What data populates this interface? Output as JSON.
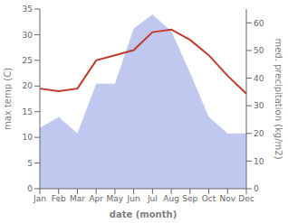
{
  "chart_data": {
    "type": "line",
    "xlabel": "date (month)",
    "ylabel": "max temp (C)",
    "y2label": "med. precipitation (kg/m2)",
    "categories": [
      "Jan",
      "Feb",
      "Mar",
      "Apr",
      "May",
      "Jun",
      "Jul",
      "Aug",
      "Sep",
      "Oct",
      "Nov",
      "Dec"
    ],
    "series": [
      {
        "type": "area",
        "axis": "y2",
        "color": "#c0c8f0",
        "values": [
          22,
          26,
          20,
          38,
          38,
          58,
          63,
          57,
          42,
          26,
          20,
          20
        ]
      },
      {
        "type": "line",
        "color": "#c0392b",
        "values": [
          19.5,
          19.0,
          19.5,
          25.0,
          26.0,
          27.0,
          30.5,
          31.0,
          29.0,
          26.0,
          22.0,
          18.5
        ]
      }
    ],
    "ylim": [
      0,
      35
    ],
    "yticks": [
      0,
      5,
      10,
      15,
      20,
      25,
      30,
      35
    ],
    "y2lim": [
      0,
      65
    ],
    "y2ticks": [
      0,
      10,
      20,
      30,
      40,
      50,
      60
    ],
    "grid": false
  }
}
